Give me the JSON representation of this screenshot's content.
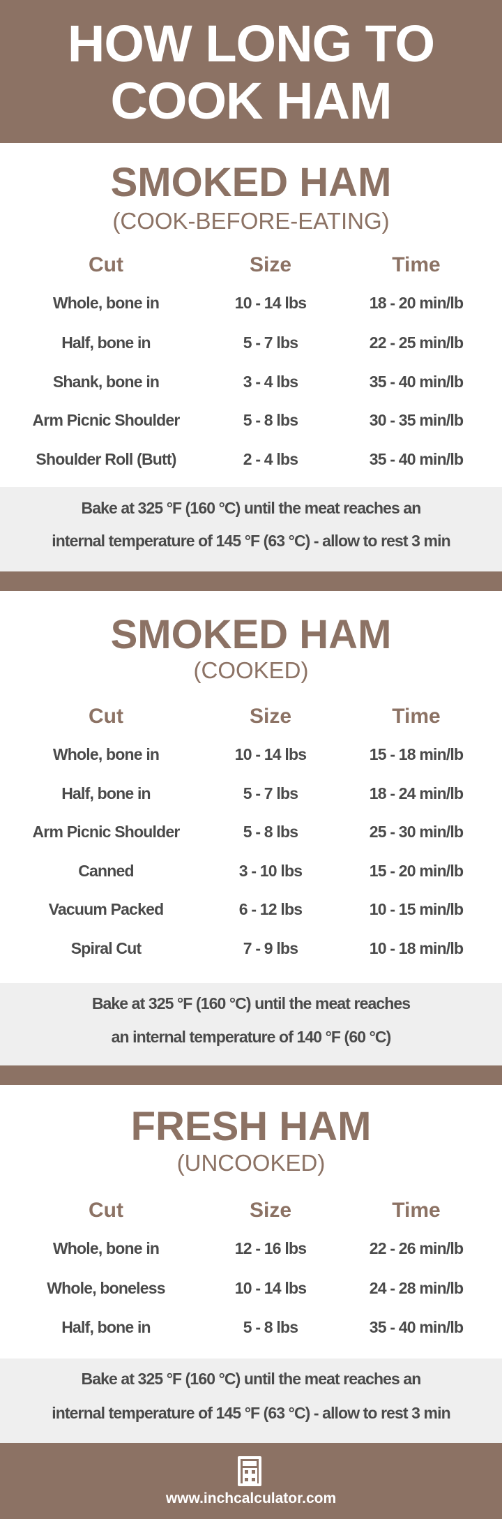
{
  "header": {
    "line1": "HOW LONG TO",
    "line2": "COOK HAM"
  },
  "columns": [
    "Cut",
    "Size",
    "Time"
  ],
  "sections": [
    {
      "title": "SMOKED HAM",
      "subtitle": "(COOK-BEFORE-EATING)",
      "rows": [
        [
          "Whole, bone in",
          "10 - 14 lbs",
          "18 - 20 min/lb"
        ],
        [
          "Half, bone in",
          "5 - 7 lbs",
          "22 - 25 min/lb"
        ],
        [
          "Shank, bone in",
          "3 - 4 lbs",
          "35 - 40 min/lb"
        ],
        [
          "Arm Picnic Shoulder",
          "5 - 8 lbs",
          "30 - 35 min/lb"
        ],
        [
          "Shoulder Roll (Butt)",
          "2 - 4 lbs",
          "35 - 40 min/lb"
        ]
      ],
      "note": [
        "Bake at 325 °F (160 °C) until the meat reaches an",
        "internal temperature of 145 °F (63 °C) - allow to rest 3 min"
      ]
    },
    {
      "title": "SMOKED HAM",
      "subtitle": "(COOKED)",
      "rows": [
        [
          "Whole, bone in",
          "10 - 14 lbs",
          "15 - 18 min/lb"
        ],
        [
          "Half, bone in",
          "5 - 7 lbs",
          "18 - 24 min/lb"
        ],
        [
          "Arm Picnic Shoulder",
          "5 - 8 lbs",
          "25 - 30 min/lb"
        ],
        [
          "Canned",
          "3 - 10 lbs",
          "15 - 20 min/lb"
        ],
        [
          "Vacuum Packed",
          "6 - 12 lbs",
          "10 - 15 min/lb"
        ],
        [
          "Spiral Cut",
          "7 - 9 lbs",
          "10 - 18 min/lb"
        ]
      ],
      "note": [
        "Bake at 325 °F (160 °C) until the meat reaches",
        "an internal temperature of 140 °F (60 °C)"
      ]
    },
    {
      "title": "FRESH HAM",
      "subtitle": "(UNCOOKED)",
      "rows": [
        [
          "Whole, bone in",
          "12 - 16 lbs",
          "22 - 26 min/lb"
        ],
        [
          "Whole, boneless",
          "10 - 14 lbs",
          "24 - 28 min/lb"
        ],
        [
          "Half, bone in",
          "5 - 8 lbs",
          "35 - 40 min/lb"
        ]
      ],
      "note": [
        "Bake at 325 °F (160 °C) until the meat reaches an",
        "internal temperature of 145 °F (63 °C)  -  allow to rest 3 min"
      ]
    }
  ],
  "footer": {
    "icon": "calculator-icon",
    "url": "www.inchcalculator.com"
  },
  "colors": {
    "brand": "#8c7264",
    "text": "#4a4a4a",
    "note_bg": "#efefef"
  }
}
